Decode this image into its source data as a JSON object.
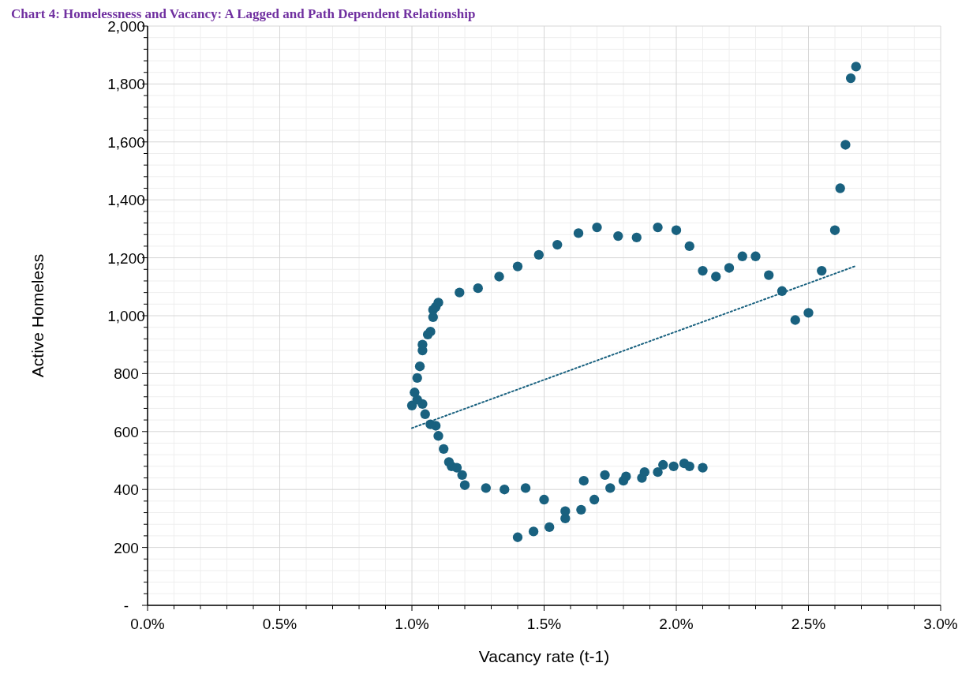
{
  "chart_data": {
    "type": "scatter",
    "title": "Chart 4: Homelessness and Vacancy: A Lagged and Path Dependent Relationship",
    "xlabel": "Vacancy rate (t-1)",
    "ylabel": "Active Homeless",
    "xlim": [
      0,
      3
    ],
    "xticks": [
      {
        "value": 0,
        "label": "0.0%"
      },
      {
        "value": 0.5,
        "label": "0.5%"
      },
      {
        "value": 1,
        "label": "1.0%"
      },
      {
        "value": 1.5,
        "label": "1.5%"
      },
      {
        "value": 2,
        "label": "2.0%"
      },
      {
        "value": 2.5,
        "label": "2.5%"
      },
      {
        "value": 3,
        "label": "3.0%"
      }
    ],
    "ylim": [
      0,
      2000
    ],
    "yticks": [
      {
        "value": 0,
        "label": "-"
      },
      {
        "value": 200,
        "label": "200"
      },
      {
        "value": 400,
        "label": "400"
      },
      {
        "value": 600,
        "label": "600"
      },
      {
        "value": 800,
        "label": "800"
      },
      {
        "value": 1000,
        "label": "1,000"
      },
      {
        "value": 1200,
        "label": "1,200"
      },
      {
        "value": 1400,
        "label": "1,400"
      },
      {
        "value": 1600,
        "label": "1,600"
      },
      {
        "value": 1800,
        "label": "1,800"
      },
      {
        "value": 2000,
        "label": "2,000"
      }
    ],
    "grid": true,
    "series": [
      {
        "type": "scatter",
        "color": "#19617f",
        "marker": "circle",
        "x": [
          1.4,
          1.46,
          1.52,
          1.58,
          1.58,
          1.64,
          1.69,
          1.65,
          1.73,
          1.75,
          1.8,
          1.81,
          1.87,
          1.88,
          1.93,
          1.95,
          1.99,
          2.03,
          2.05,
          2.1,
          1.5,
          1.43,
          1.35,
          1.28,
          1.2,
          1.19,
          1.17,
          1.15,
          1.14,
          1.12,
          1.1,
          1.09,
          1.07,
          1.05,
          1.04,
          1.0,
          1.02,
          1.01,
          1.02,
          1.03,
          1.04,
          1.04,
          1.06,
          1.07,
          1.08,
          1.08,
          1.09,
          1.1,
          1.18,
          1.25,
          1.33,
          1.4,
          1.48,
          1.55,
          1.63,
          1.7,
          1.78,
          1.85,
          1.93,
          2.0,
          2.05,
          2.1,
          2.15,
          2.2,
          2.25,
          2.3,
          2.35,
          2.4,
          2.45,
          2.5,
          2.55,
          2.6,
          2.62,
          2.64,
          2.66,
          2.68
        ],
        "values": [
          235,
          255,
          270,
          300,
          325,
          330,
          365,
          430,
          450,
          405,
          430,
          445,
          440,
          460,
          460,
          485,
          480,
          490,
          480,
          475,
          365,
          405,
          400,
          405,
          415,
          450,
          475,
          480,
          495,
          540,
          585,
          620,
          625,
          660,
          695,
          690,
          710,
          735,
          785,
          825,
          880,
          900,
          935,
          945,
          995,
          1020,
          1030,
          1045,
          1080,
          1095,
          1135,
          1170,
          1210,
          1245,
          1285,
          1305,
          1275,
          1270,
          1305,
          1295,
          1240,
          1155,
          1135,
          1165,
          1205,
          1205,
          1140,
          1085,
          985,
          1010,
          1155,
          1295,
          1440,
          1590,
          1820,
          1860
        ]
      },
      {
        "type": "line",
        "color": "#19617f",
        "marker": "none",
        "line_style": "dotted",
        "x": [
          1.0,
          2.68
        ],
        "values": [
          612,
          1172
        ]
      }
    ]
  }
}
